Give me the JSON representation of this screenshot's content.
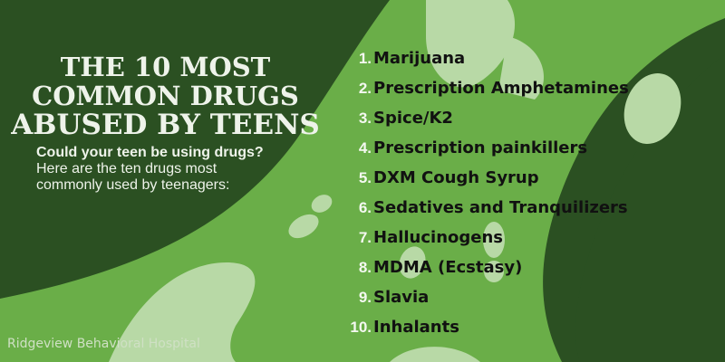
{
  "title_lines": [
    "THE 10 MOST",
    "COMMON DRUGS",
    "ABUSED BY TEENS"
  ],
  "subtitle_bold": "Could your teen be using drugs?",
  "subtitle_lines": [
    "Here are the ten drugs most",
    "commonly used by teenagers:"
  ],
  "drugs": [
    {
      "num": "1.",
      "name": "Marijuana"
    },
    {
      "num": "2.",
      "name": "Prescription Amphetamines"
    },
    {
      "num": "3.",
      "name": "Spice/K2"
    },
    {
      "num": "4.",
      "name": "Prescription painkillers"
    },
    {
      "num": "5.",
      "name": "DXM Cough Syrup"
    },
    {
      "num": "6.",
      "name": "Sedatives and Tranquilizers"
    },
    {
      "num": "7.",
      "name": "Hallucinogens"
    },
    {
      "num": "8.",
      "name": "MDMA (Ecstasy)"
    },
    {
      "num": "9.",
      "name": "Slavia"
    },
    {
      "num": "10.",
      "name": "Inhalants"
    }
  ],
  "footer": "Ridgeview Behavioral Hospital",
  "colors": {
    "dark_green": "#2b5022",
    "mid_green": "#6aae48",
    "light_green": "#b8d9a6"
  }
}
